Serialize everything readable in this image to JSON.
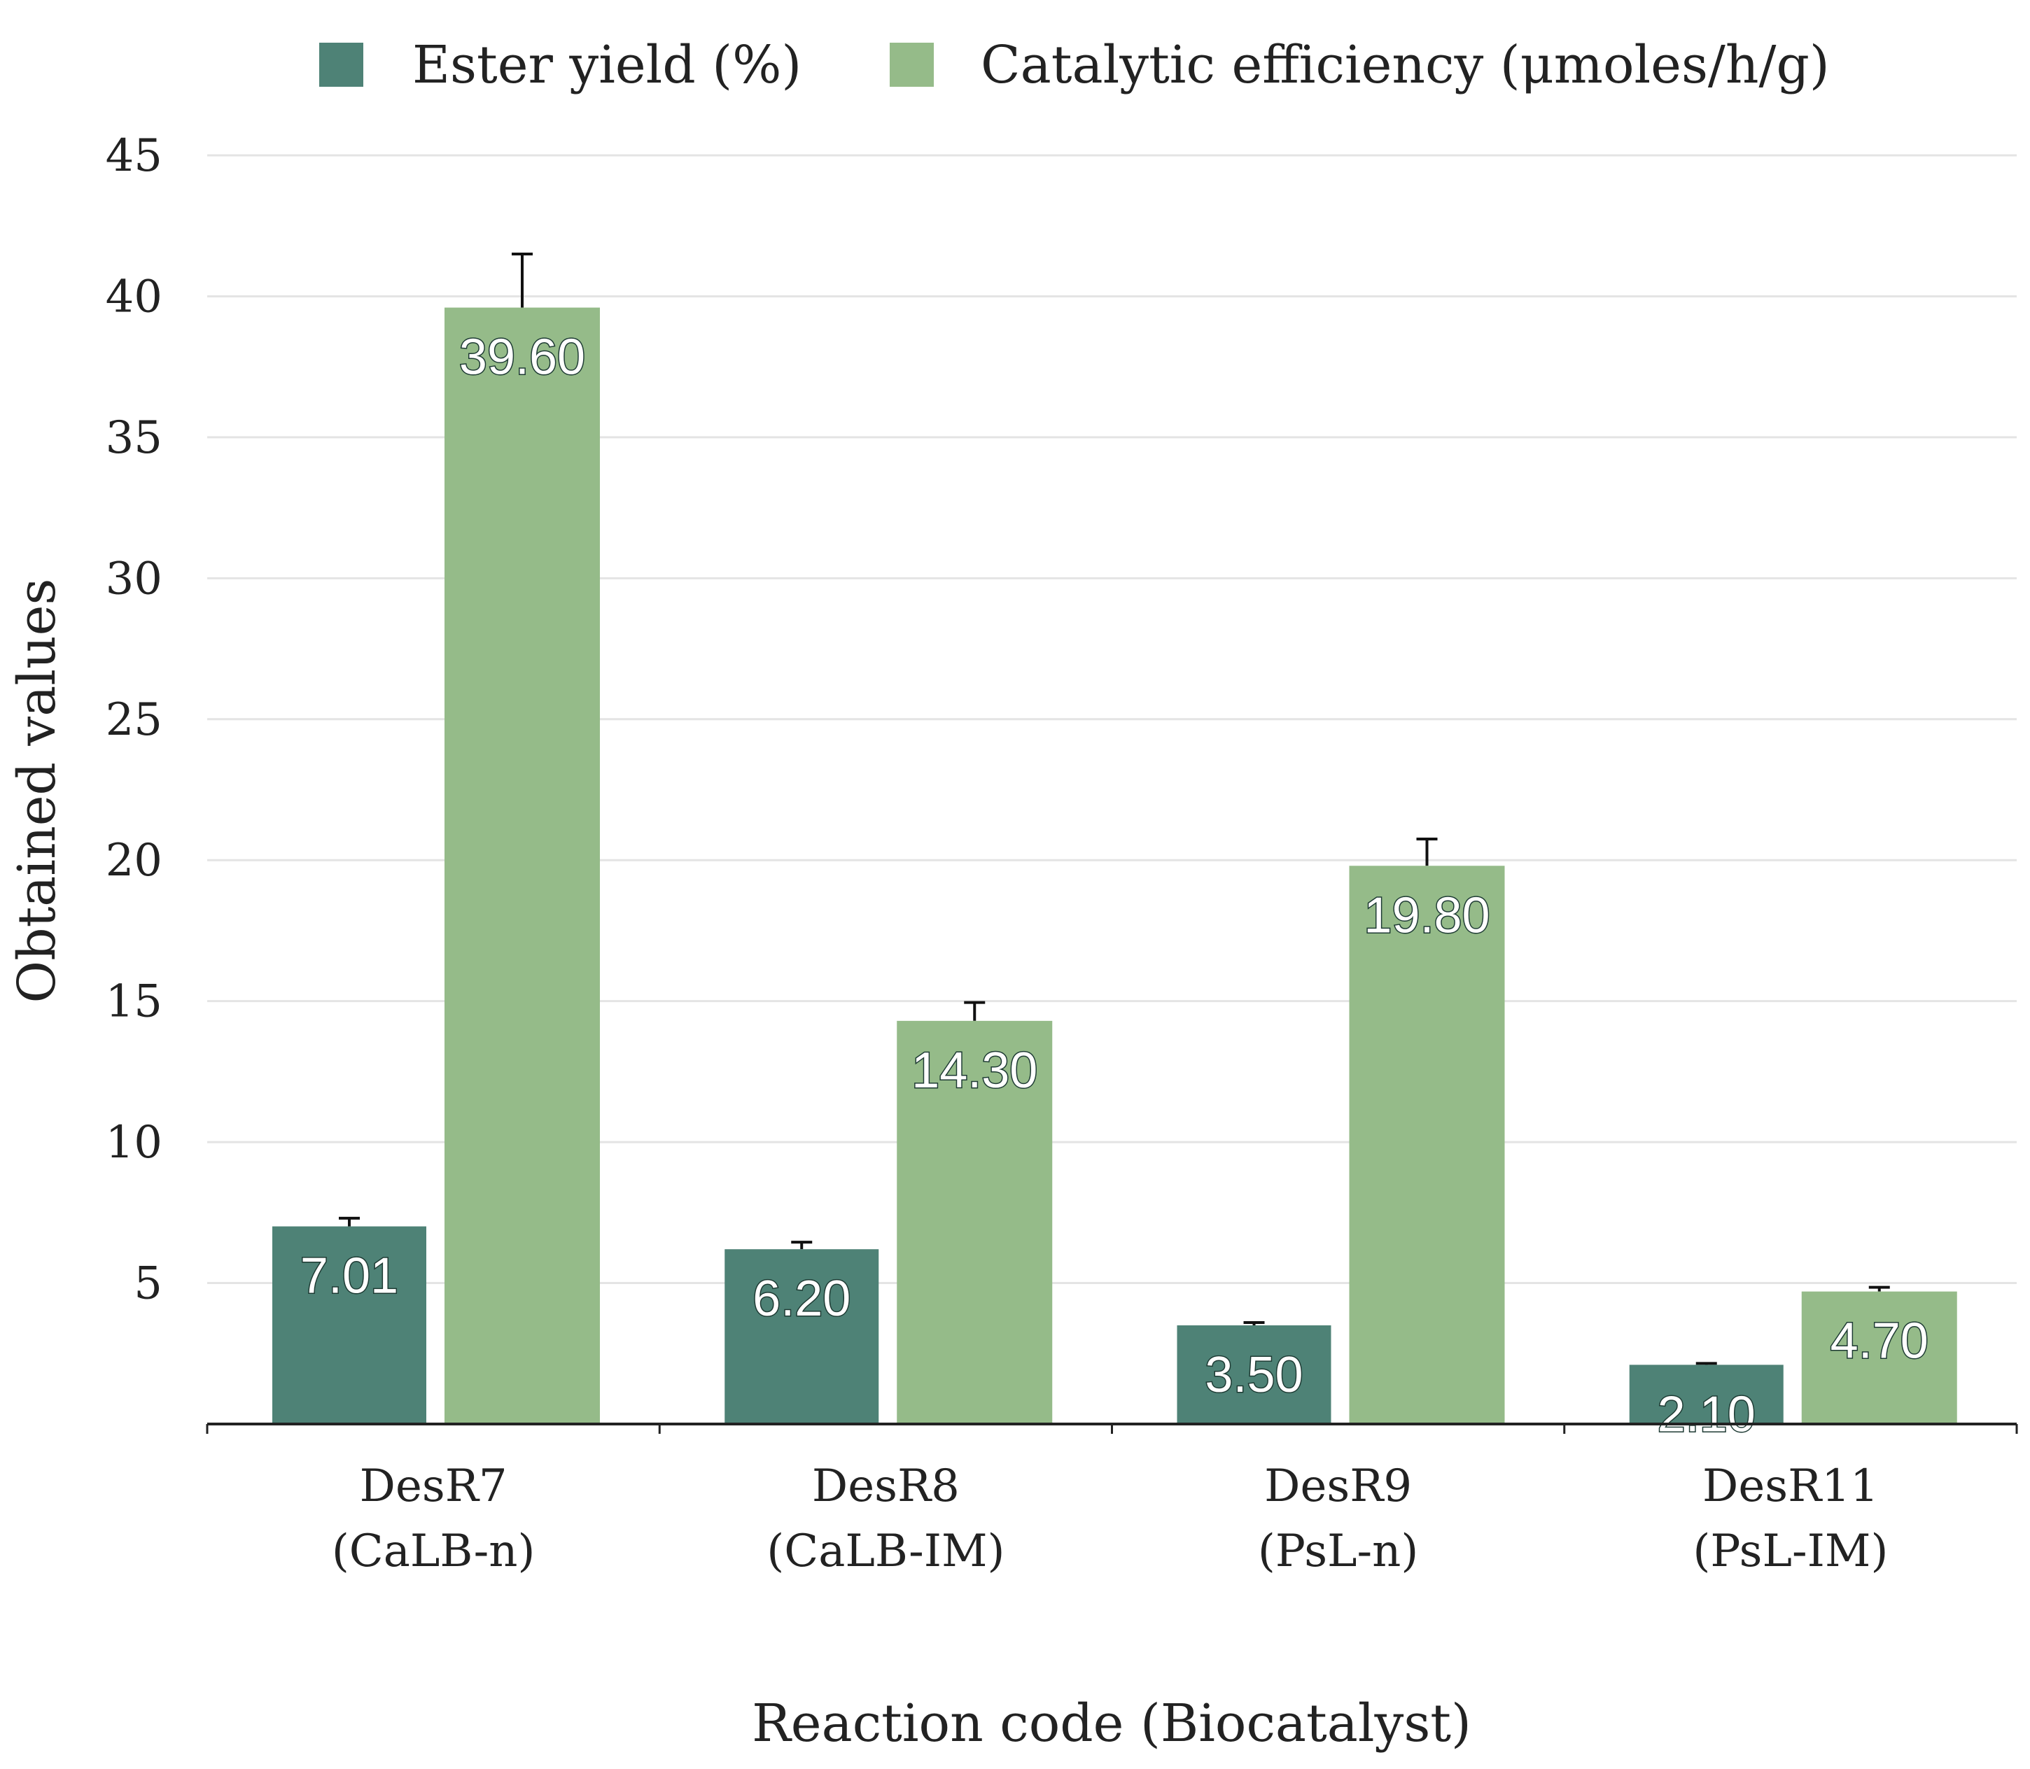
{
  "chart_data": {
    "type": "bar",
    "title": "",
    "xlabel": "Reaction code (Biocatalyst)",
    "ylabel": "Obtained values",
    "ylim": [
      0,
      45
    ],
    "yticks": [
      "5",
      "10",
      "15",
      "20",
      "25",
      "30",
      "35",
      "40",
      "45"
    ],
    "ytick_values": [
      5,
      10,
      15,
      20,
      25,
      30,
      35,
      40,
      45
    ],
    "grid": true,
    "legend_position": "top-center",
    "categories": [
      {
        "code": "DesR7",
        "catalyst": "(CaLB-n)"
      },
      {
        "code": "DesR8",
        "catalyst": "(CaLB-IM)"
      },
      {
        "code": "DesR9",
        "catalyst": "(PsL-n)"
      },
      {
        "code": "DesR11",
        "catalyst": "(PsL-IM)"
      }
    ],
    "series": [
      {
        "name": "Ester yield (%)",
        "color": "#4e8276",
        "values": [
          7.01,
          6.2,
          3.5,
          2.1
        ],
        "labels": [
          "7.01",
          "6.20",
          "3.50",
          "2.10"
        ],
        "error_upper": [
          7.3,
          6.45,
          3.6,
          2.15
        ]
      },
      {
        "name": "Catalytic efficiency (μmoles/h/g)",
        "color": "#95bb89",
        "values": [
          39.6,
          14.3,
          19.8,
          4.7
        ],
        "labels": [
          "39.60",
          "14.30",
          "19.80",
          "4.70"
        ],
        "error_upper": [
          41.5,
          14.95,
          20.75,
          4.85
        ]
      }
    ]
  }
}
